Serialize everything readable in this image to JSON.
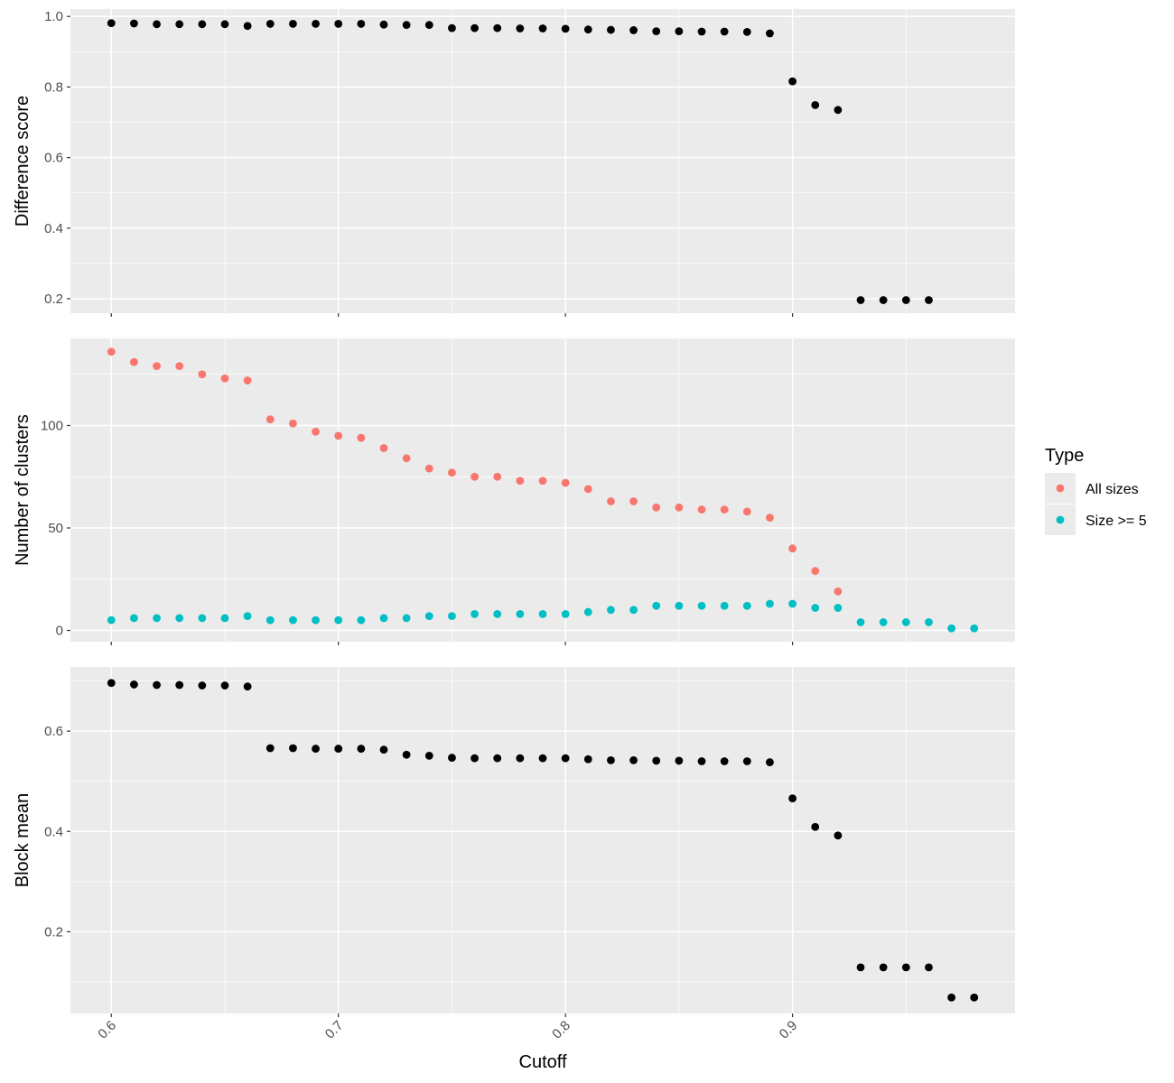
{
  "chart_data": {
    "type": "scatter",
    "xlabel": "Cutoff",
    "xlim": [
      0.582,
      0.998
    ],
    "x_ticks": [
      {
        "value": 0.6,
        "label": "0.6"
      },
      {
        "value": 0.7,
        "label": "0.7"
      },
      {
        "value": 0.8,
        "label": "0.8"
      },
      {
        "value": 0.9,
        "label": "0.9"
      }
    ],
    "grid": true,
    "legend": {
      "title": "Type",
      "position": "right",
      "entries": [
        {
          "name": "All sizes",
          "color": "#F8766D"
        },
        {
          "name": "Size >= 5",
          "color": "#00BFC4"
        }
      ]
    },
    "panels": [
      {
        "ylabel": "Difference score",
        "ylim": [
          0.159,
          1.021
        ],
        "y_ticks": [
          {
            "value": 0.2,
            "label": "0.2"
          },
          {
            "value": 0.4,
            "label": "0.4"
          },
          {
            "value": 0.6,
            "label": "0.6"
          },
          {
            "value": 0.8,
            "label": "0.8"
          },
          {
            "value": 1.0,
            "label": "1.0"
          }
        ],
        "series": [
          {
            "color": "#000000",
            "x": [
              0.6,
              0.61,
              0.62,
              0.63,
              0.64,
              0.65,
              0.66,
              0.67,
              0.68,
              0.69,
              0.7,
              0.71,
              0.72,
              0.73,
              0.74,
              0.75,
              0.76,
              0.77,
              0.78,
              0.79,
              0.8,
              0.81,
              0.82,
              0.83,
              0.84,
              0.85,
              0.86,
              0.87,
              0.88,
              0.89,
              0.9,
              0.91,
              0.92,
              0.93,
              0.94,
              0.95,
              0.96
            ],
            "y": [
              0.981,
              0.98,
              0.978,
              0.978,
              0.978,
              0.978,
              0.973,
              0.979,
              0.979,
              0.979,
              0.979,
              0.979,
              0.977,
              0.976,
              0.976,
              0.967,
              0.967,
              0.967,
              0.966,
              0.966,
              0.965,
              0.963,
              0.962,
              0.961,
              0.958,
              0.958,
              0.957,
              0.957,
              0.956,
              0.952,
              0.816,
              0.749,
              0.735,
              0.196,
              0.196,
              0.196,
              0.196
            ]
          }
        ]
      },
      {
        "ylabel": "Number of clusters",
        "ylim": [
          -5.5,
          142.5
        ],
        "y_ticks": [
          {
            "value": 0,
            "label": "0"
          },
          {
            "value": 50,
            "label": "50"
          },
          {
            "value": 100,
            "label": "100"
          }
        ],
        "series": [
          {
            "name": "All sizes",
            "color": "#F8766D",
            "x": [
              0.6,
              0.61,
              0.62,
              0.63,
              0.64,
              0.65,
              0.66,
              0.67,
              0.68,
              0.69,
              0.7,
              0.71,
              0.72,
              0.73,
              0.74,
              0.75,
              0.76,
              0.77,
              0.78,
              0.79,
              0.8,
              0.81,
              0.82,
              0.83,
              0.84,
              0.85,
              0.86,
              0.87,
              0.88,
              0.89,
              0.9,
              0.91,
              0.92
            ],
            "y": [
              136,
              131,
              129,
              129,
              125,
              123,
              122,
              103,
              101,
              97,
              95,
              94,
              89,
              84,
              79,
              77,
              75,
              75,
              73,
              73,
              72,
              69,
              63,
              63,
              60,
              60,
              59,
              59,
              58,
              55,
              40,
              29,
              19
            ]
          },
          {
            "name": "Size >= 5",
            "color": "#00BFC4",
            "x": [
              0.6,
              0.61,
              0.62,
              0.63,
              0.64,
              0.65,
              0.66,
              0.67,
              0.68,
              0.69,
              0.7,
              0.71,
              0.72,
              0.73,
              0.74,
              0.75,
              0.76,
              0.77,
              0.78,
              0.79,
              0.8,
              0.81,
              0.82,
              0.83,
              0.84,
              0.85,
              0.86,
              0.87,
              0.88,
              0.89,
              0.9,
              0.91,
              0.92,
              0.93,
              0.94,
              0.95,
              0.96,
              0.97,
              0.98
            ],
            "y": [
              5,
              6,
              6,
              6,
              6,
              6,
              7,
              5,
              5,
              5,
              5,
              5,
              6,
              6,
              7,
              7,
              8,
              8,
              8,
              8,
              8,
              9,
              10,
              10,
              12,
              12,
              12,
              12,
              12,
              13,
              13,
              11,
              11,
              4,
              4,
              4,
              4,
              1,
              1
            ]
          }
        ]
      },
      {
        "ylabel": "Block mean",
        "ylim": [
          0.037,
          0.728
        ],
        "y_ticks": [
          {
            "value": 0.2,
            "label": "0.2"
          },
          {
            "value": 0.4,
            "label": "0.4"
          },
          {
            "value": 0.6,
            "label": "0.6"
          }
        ],
        "series": [
          {
            "color": "#000000",
            "x": [
              0.6,
              0.61,
              0.62,
              0.63,
              0.64,
              0.65,
              0.66,
              0.67,
              0.68,
              0.69,
              0.7,
              0.71,
              0.72,
              0.73,
              0.74,
              0.75,
              0.76,
              0.77,
              0.78,
              0.79,
              0.8,
              0.81,
              0.82,
              0.83,
              0.84,
              0.85,
              0.86,
              0.87,
              0.88,
              0.89,
              0.9,
              0.91,
              0.92,
              0.93,
              0.94,
              0.95,
              0.96,
              0.97,
              0.98
            ],
            "y": [
              0.696,
              0.693,
              0.692,
              0.692,
              0.691,
              0.691,
              0.689,
              0.566,
              0.566,
              0.565,
              0.565,
              0.565,
              0.563,
              0.553,
              0.551,
              0.547,
              0.546,
              0.546,
              0.546,
              0.546,
              0.546,
              0.544,
              0.542,
              0.542,
              0.541,
              0.541,
              0.54,
              0.54,
              0.54,
              0.538,
              0.466,
              0.409,
              0.392,
              0.129,
              0.129,
              0.129,
              0.129,
              0.069,
              0.069
            ]
          }
        ]
      }
    ]
  }
}
